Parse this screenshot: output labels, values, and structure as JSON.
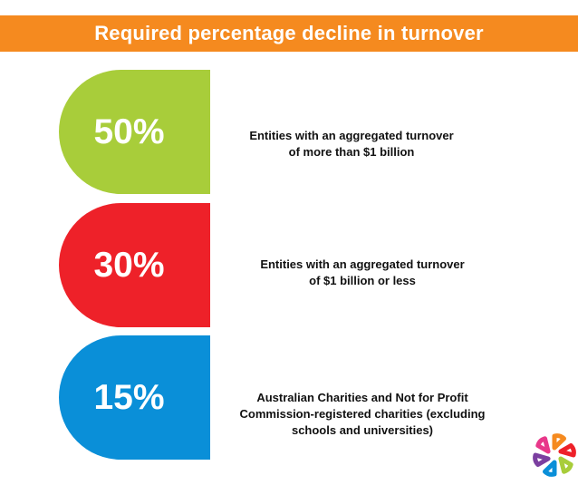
{
  "title": "Required percentage decline in turnover",
  "items": [
    {
      "percent": "50%",
      "color": "#a8cd3a",
      "desc_lines": [
        "Entities with an aggregated turnover",
        "of more than $1 billion"
      ]
    },
    {
      "percent": "30%",
      "color": "#ee2129",
      "desc_lines": [
        "Entities with an aggregated turnover",
        "of $1 billion or less"
      ]
    },
    {
      "percent": "15%",
      "color": "#0a8fd8",
      "desc_lines": [
        "Australian Charities and Not for Profit",
        "Commission-registered charities (excluding",
        "schools and universities)"
      ]
    }
  ],
  "logo": {
    "icon": "petal-pinwheel-logo-icon",
    "colors": [
      "#f58a1f",
      "#ee2129",
      "#a8cd3a",
      "#0a8fd8",
      "#7b3fa0",
      "#e8388a"
    ]
  }
}
